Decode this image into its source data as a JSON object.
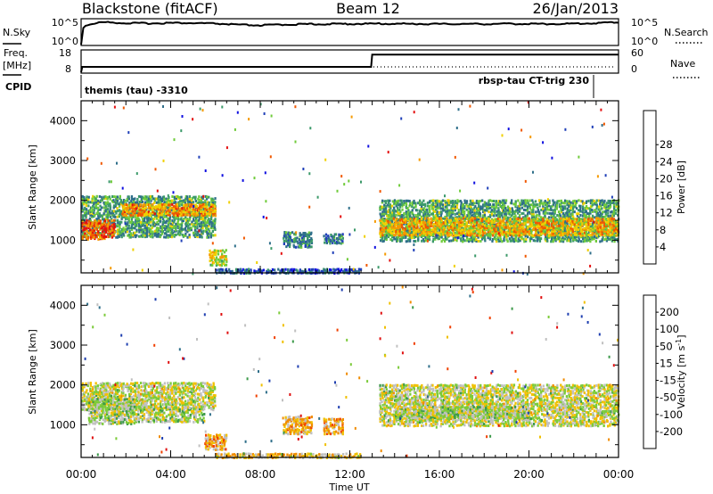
{
  "header": {
    "station": "Blackstone (fitACF)",
    "beam": "Beam 12",
    "date": "26/Jan/2013"
  },
  "summary_panels": {
    "nsky_label": "N.Sky",
    "nsky_ticks": [
      "10^5",
      "10^0"
    ],
    "nsearch_label": "N.Search",
    "nsearch_ticks": [
      "10^5",
      "10^0"
    ],
    "freq_label_1": "Freq.",
    "freq_label_2": "[MHz]",
    "freq_ticks": [
      "18",
      "8"
    ],
    "nave_label": "Nave",
    "nave_ticks": [
      "60",
      "0"
    ],
    "cpid_label": "CPID",
    "cpid_left": "themis (tau) -3310",
    "cpid_right": "rbsp-tau CT-trig 230"
  },
  "axes": {
    "ylabel": "Slant Range [km]",
    "xlabel": "Time UT",
    "yticks": [
      "1000",
      "2000",
      "3000",
      "4000"
    ],
    "xticks": [
      "00:00",
      "04:00",
      "08:00",
      "12:00",
      "16:00",
      "20:00",
      "00:00"
    ]
  },
  "power_scale": {
    "label": "Power [dB]",
    "ticks": [
      "4",
      "8",
      "12",
      "16",
      "20",
      "24",
      "28"
    ],
    "colors": [
      "#1010e0",
      "#2040b8",
      "#2f6f8a",
      "#3c9a6a",
      "#6fcb3a",
      "#f0d000",
      "#f59a00",
      "#f05800",
      "#e41010"
    ]
  },
  "velocity_scale": {
    "label": "Velocity [m s",
    "label_sup": "-1",
    "label_end": "]",
    "ticks": [
      "200",
      "100",
      "50",
      "15",
      "-15",
      "-50",
      "-100",
      "-200"
    ],
    "colors": [
      "#1f3fb0",
      "#2f6f8a",
      "#3c9a4a",
      "#7ccb3a",
      "#c0c0c0",
      "#f0c000",
      "#f08c00",
      "#f04000",
      "#e01010"
    ]
  },
  "chart_data": [
    {
      "type": "line",
      "title": "N.Sky",
      "x_range_hours": [
        0,
        24
      ],
      "y_scale": "log",
      "y_range": [
        1,
        100000
      ],
      "series": [
        {
          "name": "N.Sky",
          "x": [
            0,
            1,
            2,
            3,
            4,
            5,
            6,
            7,
            8,
            9,
            10,
            11,
            12,
            13,
            14,
            15,
            16,
            17,
            18,
            19,
            20,
            21,
            22,
            23,
            24
          ],
          "y": [
            1,
            30000,
            20000,
            18000,
            22000,
            20000,
            16000,
            9000,
            7000,
            10000,
            12000,
            13000,
            14000,
            15000,
            15000,
            14000,
            13000,
            14000,
            13000,
            15000,
            14000,
            14000,
            15000,
            20000,
            30000
          ]
        }
      ]
    },
    {
      "type": "line",
      "title": "Freq.",
      "x_range_hours": [
        0,
        24
      ],
      "y_range": [
        8,
        18
      ],
      "series": [
        {
          "name": "Freq.",
          "x": [
            0,
            0.05,
            12.95,
            13,
            24
          ],
          "y": [
            8,
            10.5,
            10.5,
            16.2,
            16.2
          ]
        }
      ]
    },
    {
      "type": "heatmap",
      "title": "Power [dB]",
      "x_range_hours": [
        0,
        24
      ],
      "y_range_km": [
        180,
        4500
      ],
      "color_range": [
        0,
        30
      ],
      "regions": [
        {
          "t0": 0.0,
          "t1": 6.0,
          "r0": 1100,
          "r1": 2150,
          "value": 12
        },
        {
          "t0": 0.0,
          "t1": 1.5,
          "r0": 1050,
          "r1": 1550,
          "value": 25
        },
        {
          "t0": 1.8,
          "t1": 6.0,
          "r0": 1650,
          "r1": 1950,
          "value": 22
        },
        {
          "t0": 5.7,
          "t1": 6.5,
          "r0": 400,
          "r1": 800,
          "value": 18
        },
        {
          "t0": 6.0,
          "t1": 12.5,
          "r0": 200,
          "r1": 320,
          "value": 6
        },
        {
          "t0": 9.0,
          "t1": 10.3,
          "r0": 850,
          "r1": 1250,
          "value": 10
        },
        {
          "t0": 10.8,
          "t1": 11.7,
          "r0": 950,
          "r1": 1200,
          "value": 9
        },
        {
          "t0": 13.3,
          "t1": 24.0,
          "r0": 1000,
          "r1": 2050,
          "value": 12
        },
        {
          "t0": 13.3,
          "t1": 24.0,
          "r0": 1150,
          "r1": 1600,
          "value": 20
        }
      ]
    },
    {
      "type": "heatmap",
      "title": "Velocity [m s-1]",
      "x_range_hours": [
        0,
        24
      ],
      "y_range_km": [
        180,
        4500
      ],
      "color_range": [
        -200,
        200
      ],
      "regions": [
        {
          "t0": 0.0,
          "t1": 6.0,
          "r0": 1400,
          "r1": 2100,
          "value": 0
        },
        {
          "t0": 0.3,
          "t1": 2.5,
          "r0": 1050,
          "r1": 1700,
          "value": 25
        },
        {
          "t0": 2.5,
          "t1": 5.5,
          "r0": 1100,
          "r1": 1500,
          "value": 20
        },
        {
          "t0": 5.5,
          "t1": 6.5,
          "r0": 400,
          "r1": 800,
          "value": -60
        },
        {
          "t0": 6.0,
          "t1": 12.5,
          "r0": 200,
          "r1": 320,
          "value": -40
        },
        {
          "t0": 9.0,
          "t1": 10.3,
          "r0": 800,
          "r1": 1250,
          "value": -60
        },
        {
          "t0": 10.8,
          "t1": 11.7,
          "r0": 800,
          "r1": 1200,
          "value": -60
        },
        {
          "t0": 13.3,
          "t1": 24.0,
          "r0": 1000,
          "r1": 2050,
          "value": 0
        },
        {
          "t0": 14.0,
          "t1": 20.0,
          "r0": 1200,
          "r1": 1500,
          "value": 20
        }
      ]
    }
  ]
}
